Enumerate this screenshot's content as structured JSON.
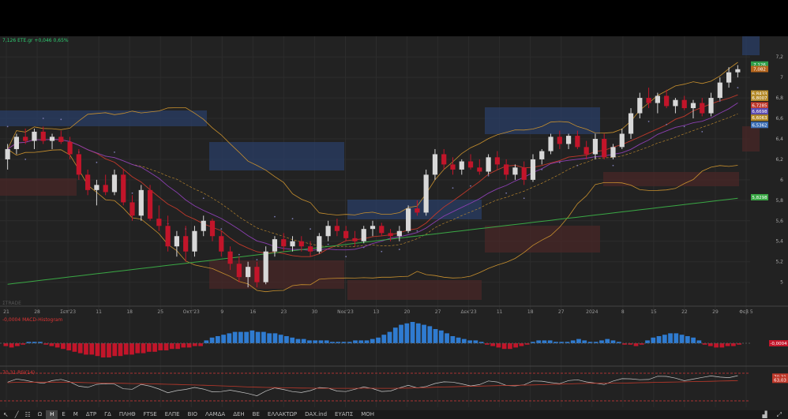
{
  "header": {
    "quote_line": "7,126 ETE.gr +0,046 0,65%"
  },
  "price_axis": {
    "labels": [
      "7,2",
      "7",
      "6,8",
      "6,6",
      "6,4",
      "6,2",
      "6",
      "5,8",
      "5,6",
      "5,4",
      "5,2",
      "5"
    ],
    "badges": [
      {
        "text": "7,126",
        "color": "#2e9e4a"
      },
      {
        "text": "7,082",
        "color": "#b5651d"
      },
      {
        "text": "6,8433",
        "color": "#b58b2a"
      },
      {
        "text": "6,8007",
        "color": "#b58b2a"
      },
      {
        "text": "6,7285",
        "color": "#c0392b"
      },
      {
        "text": "6,6698",
        "color": "#5b4bb0"
      },
      {
        "text": "6,6063",
        "color": "#b58b2a"
      },
      {
        "text": "6,5362",
        "color": "#3d6fb5"
      },
      {
        "text": "5,8298",
        "color": "#3aa845"
      }
    ]
  },
  "time_axis": {
    "labels": [
      "21",
      "28",
      "Σεπ'23",
      "11",
      "18",
      "25",
      "Οκτ'23",
      "9",
      "16",
      "23",
      "30",
      "Νοε'23",
      "13",
      "20",
      "27",
      "Δεκ'23",
      "11",
      "18",
      "27",
      "2024",
      "8",
      "15",
      "22",
      "29",
      "Φεβ 5"
    ]
  },
  "watermark": "ΣTRADE",
  "macd_panel": {
    "label": "-0,0004 MACD-Histogram",
    "badge": "-0,0004",
    "values": [
      -0.02,
      -0.03,
      -0.02,
      -0.01,
      0.01,
      0.01,
      0.01,
      -0.01,
      -0.02,
      -0.03,
      -0.04,
      -0.05,
      -0.06,
      -0.07,
      -0.08,
      -0.08,
      -0.09,
      -0.1,
      -0.1,
      -0.09,
      -0.09,
      -0.08,
      -0.08,
      -0.07,
      -0.07,
      -0.06,
      -0.06,
      -0.05,
      -0.05,
      -0.04,
      -0.04,
      -0.03,
      -0.03,
      -0.02,
      -0.02,
      0.02,
      0.04,
      0.05,
      0.06,
      0.07,
      0.08,
      0.08,
      0.08,
      0.09,
      0.08,
      0.08,
      0.07,
      0.07,
      0.06,
      0.05,
      0.04,
      0.03,
      0.03,
      0.02,
      0.02,
      0.02,
      0.02,
      0.01,
      0.01,
      0.01,
      0.01,
      0.02,
      0.02,
      0.02,
      0.03,
      0.04,
      0.06,
      0.08,
      0.11,
      0.13,
      0.14,
      0.15,
      0.14,
      0.13,
      0.12,
      0.1,
      0.09,
      0.07,
      0.05,
      0.04,
      0.03,
      0.02,
      0.02,
      0.01,
      -0.01,
      -0.02,
      -0.03,
      -0.04,
      -0.04,
      -0.03,
      -0.02,
      -0.01,
      0.01,
      0.02,
      0.02,
      0.02,
      0.01,
      0.01,
      0.01,
      0.02,
      0.03,
      0.02,
      0.01,
      0.01,
      0.02,
      0.03,
      0.02,
      0.01,
      -0.01,
      -0.01,
      -0.02,
      -0.01,
      0.02,
      0.04,
      0.05,
      0.06,
      0.07,
      0.07,
      0.06,
      0.05,
      0.04,
      0.02,
      -0.01,
      -0.02,
      -0.03,
      -0.03,
      -0.02,
      -0.02,
      -0.01
    ]
  },
  "rsi_panel": {
    "label": "70,31 RSI(14)",
    "badges": [
      {
        "text": "70,31",
        "color": "#c0392b"
      },
      {
        "text": "63,03",
        "color": "#c0392b"
      }
    ],
    "axis_labels": [
      "50"
    ]
  },
  "toolbar": {
    "items": [
      "Ω",
      "H",
      "E",
      "M",
      "ΔΤΡ",
      "ΓΔ",
      "ΠΛΗΘ",
      "FTSE",
      "ΕΛΠΕ",
      "ΒΙΟ",
      "ΛΑΜΔΑ",
      "ΔΕΗ",
      "ΒΕ",
      "ΕΛΛΑΚΤΩΡ",
      "DAX.ind",
      "ΕΥΑΠΣ",
      "ΜΟΗ"
    ],
    "active": "H"
  },
  "colors": {
    "background": "#222222",
    "up_candle": "#d8d8d8",
    "down_candle": "#c2152a",
    "macd_pos": "#2f7bd0",
    "macd_neg": "#c2152a",
    "bollinger": "#c8902e",
    "sma_long": "#3aa845",
    "sma_mid": "#8a3fb0",
    "ema_red": "#c0392b",
    "sar": "#7a7ab0"
  },
  "chart_data": {
    "type": "candlestick",
    "title": "",
    "ylim": [
      4.82,
      7.34
    ],
    "x_labels": [
      "21",
      "28",
      "Σεπ'23",
      "11",
      "18",
      "25",
      "Οκτ'23",
      "9",
      "16",
      "23",
      "30",
      "Νοε'23",
      "13",
      "20",
      "27",
      "Δεκ'23",
      "11",
      "18",
      "27",
      "2024",
      "8",
      "15",
      "22",
      "29",
      "Φεβ 5"
    ],
    "candles": [
      [
        6.2,
        6.35,
        6.1,
        6.3
      ],
      [
        6.3,
        6.45,
        6.25,
        6.42
      ],
      [
        6.42,
        6.5,
        6.35,
        6.38
      ],
      [
        6.38,
        6.5,
        6.3,
        6.47
      ],
      [
        6.47,
        6.52,
        6.35,
        6.38
      ],
      [
        6.38,
        6.45,
        6.3,
        6.42
      ],
      [
        6.42,
        6.48,
        6.35,
        6.37
      ],
      [
        6.37,
        6.42,
        6.2,
        6.25
      ],
      [
        6.25,
        6.3,
        6.0,
        6.05
      ],
      [
        6.05,
        6.1,
        5.85,
        5.9
      ],
      [
        5.9,
        6.0,
        5.75,
        5.95
      ],
      [
        5.95,
        6.05,
        5.85,
        5.88
      ],
      [
        5.88,
        6.1,
        5.85,
        6.05
      ],
      [
        6.05,
        6.1,
        5.75,
        5.78
      ],
      [
        5.78,
        5.85,
        5.6,
        5.65
      ],
      [
        5.65,
        5.95,
        5.6,
        5.9
      ],
      [
        5.9,
        5.95,
        5.6,
        5.62
      ],
      [
        5.62,
        5.75,
        5.5,
        5.55
      ],
      [
        5.55,
        5.65,
        5.3,
        5.35
      ],
      [
        5.35,
        5.5,
        5.25,
        5.45
      ],
      [
        5.45,
        5.55,
        5.2,
        5.3
      ],
      [
        5.3,
        5.55,
        5.25,
        5.5
      ],
      [
        5.5,
        5.65,
        5.45,
        5.6
      ],
      [
        5.6,
        5.62,
        5.4,
        5.45
      ],
      [
        5.45,
        5.5,
        5.25,
        5.3
      ],
      [
        5.3,
        5.35,
        5.12,
        5.18
      ],
      [
        5.18,
        5.25,
        5.0,
        5.05
      ],
      [
        5.05,
        5.2,
        4.95,
        5.15
      ],
      [
        5.15,
        5.2,
        4.95,
        5.0
      ],
      [
        5.0,
        5.35,
        4.98,
        5.3
      ],
      [
        5.3,
        5.45,
        5.25,
        5.42
      ],
      [
        5.42,
        5.48,
        5.3,
        5.35
      ],
      [
        5.35,
        5.45,
        5.3,
        5.4
      ],
      [
        5.4,
        5.45,
        5.3,
        5.35
      ],
      [
        5.35,
        5.4,
        5.25,
        5.3
      ],
      [
        5.3,
        5.48,
        5.28,
        5.45
      ],
      [
        5.45,
        5.6,
        5.4,
        5.55
      ],
      [
        5.55,
        5.62,
        5.45,
        5.5
      ],
      [
        5.5,
        5.55,
        5.4,
        5.43
      ],
      [
        5.43,
        5.5,
        5.35,
        5.4
      ],
      [
        5.4,
        5.55,
        5.38,
        5.52
      ],
      [
        5.52,
        5.6,
        5.45,
        5.55
      ],
      [
        5.55,
        5.58,
        5.45,
        5.48
      ],
      [
        5.48,
        5.52,
        5.4,
        5.45
      ],
      [
        5.45,
        5.55,
        5.4,
        5.5
      ],
      [
        5.5,
        5.75,
        5.48,
        5.72
      ],
      [
        5.72,
        5.8,
        5.65,
        5.68
      ],
      [
        5.68,
        6.1,
        5.65,
        6.05
      ],
      [
        6.05,
        6.3,
        6.0,
        6.25
      ],
      [
        6.25,
        6.3,
        6.1,
        6.15
      ],
      [
        6.15,
        6.22,
        6.05,
        6.1
      ],
      [
        6.1,
        6.2,
        6.05,
        6.18
      ],
      [
        6.18,
        6.25,
        6.1,
        6.12
      ],
      [
        6.12,
        6.2,
        6.05,
        6.08
      ],
      [
        6.08,
        6.25,
        6.05,
        6.22
      ],
      [
        6.22,
        6.28,
        6.1,
        6.15
      ],
      [
        6.15,
        6.2,
        6.0,
        6.05
      ],
      [
        6.05,
        6.15,
        6.0,
        6.12
      ],
      [
        6.12,
        6.18,
        5.95,
        6.0
      ],
      [
        6.0,
        6.25,
        5.98,
        6.2
      ],
      [
        6.2,
        6.3,
        6.15,
        6.28
      ],
      [
        6.28,
        6.45,
        6.25,
        6.42
      ],
      [
        6.42,
        6.48,
        6.3,
        6.35
      ],
      [
        6.35,
        6.45,
        6.3,
        6.43
      ],
      [
        6.43,
        6.48,
        6.3,
        6.32
      ],
      [
        6.32,
        6.38,
        6.2,
        6.25
      ],
      [
        6.25,
        6.45,
        6.2,
        6.4
      ],
      [
        6.4,
        6.45,
        6.2,
        6.22
      ],
      [
        6.22,
        6.35,
        6.2,
        6.32
      ],
      [
        6.32,
        6.5,
        6.3,
        6.45
      ],
      [
        6.45,
        6.7,
        6.4,
        6.65
      ],
      [
        6.65,
        6.85,
        6.6,
        6.8
      ],
      [
        6.8,
        6.9,
        6.7,
        6.75
      ],
      [
        6.75,
        6.85,
        6.65,
        6.82
      ],
      [
        6.82,
        6.88,
        6.7,
        6.72
      ],
      [
        6.72,
        6.8,
        6.65,
        6.78
      ],
      [
        6.78,
        6.82,
        6.68,
        6.7
      ],
      [
        6.7,
        6.78,
        6.6,
        6.75
      ],
      [
        6.75,
        6.8,
        6.62,
        6.65
      ],
      [
        6.65,
        6.85,
        6.62,
        6.8
      ],
      [
        6.8,
        7.0,
        6.78,
        6.95
      ],
      [
        6.95,
        7.1,
        6.9,
        7.05
      ],
      [
        7.05,
        7.12,
        7.0,
        7.08
      ]
    ]
  }
}
